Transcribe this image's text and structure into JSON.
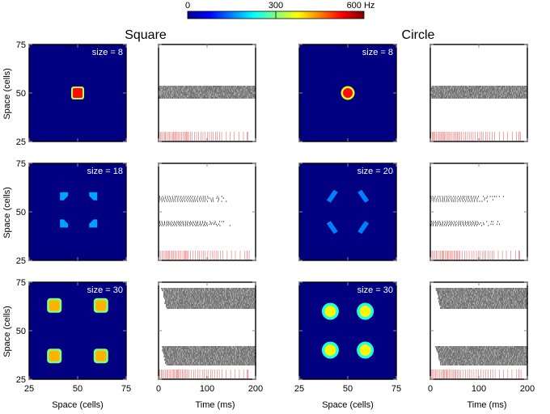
{
  "colorbar": {
    "tick_labels": [
      "0",
      "300",
      "600 Hz"
    ],
    "range": [
      0,
      600
    ],
    "colormap": "jet"
  },
  "columns": [
    "Square",
    "Circle"
  ],
  "axis_labels": {
    "space_y": "Space (cells)",
    "space_x": "Space (cells)",
    "time_x": "Time (ms)"
  },
  "chart_data": [
    {
      "type": "heatmap",
      "group": "Square",
      "size_label": "size = 8",
      "xlim": [
        25,
        75
      ],
      "ylim": [
        25,
        75
      ],
      "xticks": [
        "25",
        "50",
        "75"
      ],
      "yticks": [
        "25",
        "50",
        "75"
      ],
      "blobs": [
        {
          "x": 50,
          "y": 50,
          "rate_hz": 520,
          "shape": "square",
          "extent": 8
        }
      ]
    },
    {
      "type": "scatter",
      "group": "Square",
      "subtype": "raster",
      "size": 8,
      "xlim": [
        0,
        200
      ],
      "xticks": [
        "0",
        "100",
        "200"
      ],
      "raster_bands": [
        {
          "t_start": 0,
          "t_end": 200,
          "density": "high"
        }
      ],
      "stimulus_ticks_ms": [
        0,
        200
      ]
    },
    {
      "type": "heatmap",
      "group": "Circle",
      "size_label": "size = 8",
      "xlim": [
        25,
        75
      ],
      "ylim": [
        25,
        75
      ],
      "blobs": [
        {
          "x": 50,
          "y": 50,
          "rate_hz": 520,
          "shape": "circle",
          "extent": 8
        }
      ]
    },
    {
      "type": "scatter",
      "group": "Circle",
      "subtype": "raster",
      "size": 8,
      "xlim": [
        0,
        200
      ],
      "xticks": [
        "0",
        "100",
        "200"
      ],
      "raster_bands": [
        {
          "t_start": 0,
          "t_end": 200,
          "density": "high"
        }
      ],
      "stimulus_ticks_ms": [
        0,
        200
      ]
    },
    {
      "type": "heatmap",
      "group": "Square",
      "size_label": "size = 18",
      "xlim": [
        25,
        75
      ],
      "ylim": [
        25,
        75
      ],
      "yticks": [
        "25",
        "50",
        "75"
      ],
      "blobs": [
        {
          "x": 43,
          "y": 58,
          "rate_hz": 170,
          "shape": "corner"
        },
        {
          "x": 58,
          "y": 58,
          "rate_hz": 170,
          "shape": "corner"
        },
        {
          "x": 43,
          "y": 44,
          "rate_hz": 170,
          "shape": "corner"
        },
        {
          "x": 58,
          "y": 44,
          "rate_hz": 170,
          "shape": "corner"
        }
      ]
    },
    {
      "type": "scatter",
      "group": "Square",
      "subtype": "raster",
      "size": 18,
      "xlim": [
        0,
        200
      ],
      "xticks": [
        "0",
        "100",
        "200"
      ],
      "raster_bands": [
        {
          "t_start": 0,
          "t_end": 160,
          "density": "sparse"
        },
        {
          "t_start": 0,
          "t_end": 160,
          "density": "sparse"
        }
      ],
      "stimulus_ticks_ms": [
        0,
        200
      ]
    },
    {
      "type": "heatmap",
      "group": "Circle",
      "size_label": "size = 20",
      "xlim": [
        25,
        75
      ],
      "ylim": [
        25,
        75
      ],
      "blobs": [
        {
          "x": 42,
          "y": 58,
          "rate_hz": 150,
          "shape": "arc"
        },
        {
          "x": 58,
          "y": 58,
          "rate_hz": 150,
          "shape": "arc"
        },
        {
          "x": 42,
          "y": 42,
          "rate_hz": 150,
          "shape": "arc"
        },
        {
          "x": 58,
          "y": 42,
          "rate_hz": 150,
          "shape": "arc"
        }
      ]
    },
    {
      "type": "scatter",
      "group": "Circle",
      "subtype": "raster",
      "size": 20,
      "xlim": [
        0,
        200
      ],
      "xticks": [
        "0",
        "100",
        "200"
      ],
      "raster_bands": [
        {
          "t_start": 0,
          "t_end": 160,
          "density": "sparse"
        },
        {
          "t_start": 0,
          "t_end": 160,
          "density": "sparse"
        }
      ],
      "stimulus_ticks_ms": [
        0,
        200
      ]
    },
    {
      "type": "heatmap",
      "group": "Square",
      "size_label": "size = 30",
      "xlim": [
        25,
        75
      ],
      "ylim": [
        25,
        75
      ],
      "xticks": [
        "25",
        "50",
        "75"
      ],
      "yticks": [
        "25",
        "50",
        "75"
      ],
      "blobs": [
        {
          "x": 38,
          "y": 63,
          "rate_hz": 420,
          "shape": "square"
        },
        {
          "x": 62,
          "y": 63,
          "rate_hz": 420,
          "shape": "square"
        },
        {
          "x": 38,
          "y": 37,
          "rate_hz": 420,
          "shape": "square"
        },
        {
          "x": 62,
          "y": 37,
          "rate_hz": 420,
          "shape": "square"
        }
      ]
    },
    {
      "type": "scatter",
      "group": "Square",
      "subtype": "raster",
      "size": 30,
      "xlim": [
        0,
        200
      ],
      "xticks": [
        "0",
        "100",
        "200"
      ],
      "raster_bands": [
        {
          "t_start": 5,
          "t_end": 200,
          "density": "high"
        },
        {
          "t_start": 5,
          "t_end": 200,
          "density": "high"
        }
      ],
      "stimulus_ticks_ms": [
        0,
        200
      ]
    },
    {
      "type": "heatmap",
      "group": "Circle",
      "size_label": "size = 30",
      "xlim": [
        25,
        75
      ],
      "ylim": [
        25,
        75
      ],
      "xticks": [
        "25",
        "50",
        "75"
      ],
      "blobs": [
        {
          "x": 41,
          "y": 60,
          "rate_hz": 380,
          "shape": "circle"
        },
        {
          "x": 59,
          "y": 60,
          "rate_hz": 380,
          "shape": "circle"
        },
        {
          "x": 41,
          "y": 40,
          "rate_hz": 380,
          "shape": "circle"
        },
        {
          "x": 59,
          "y": 40,
          "rate_hz": 380,
          "shape": "circle"
        }
      ]
    },
    {
      "type": "scatter",
      "group": "Circle",
      "subtype": "raster",
      "size": 30,
      "xlim": [
        0,
        200
      ],
      "xticks": [
        "0",
        "100",
        "200"
      ],
      "raster_bands": [
        {
          "t_start": 10,
          "t_end": 200,
          "density": "high"
        },
        {
          "t_start": 10,
          "t_end": 200,
          "density": "high"
        }
      ],
      "stimulus_ticks_ms": [
        0,
        200
      ]
    }
  ]
}
